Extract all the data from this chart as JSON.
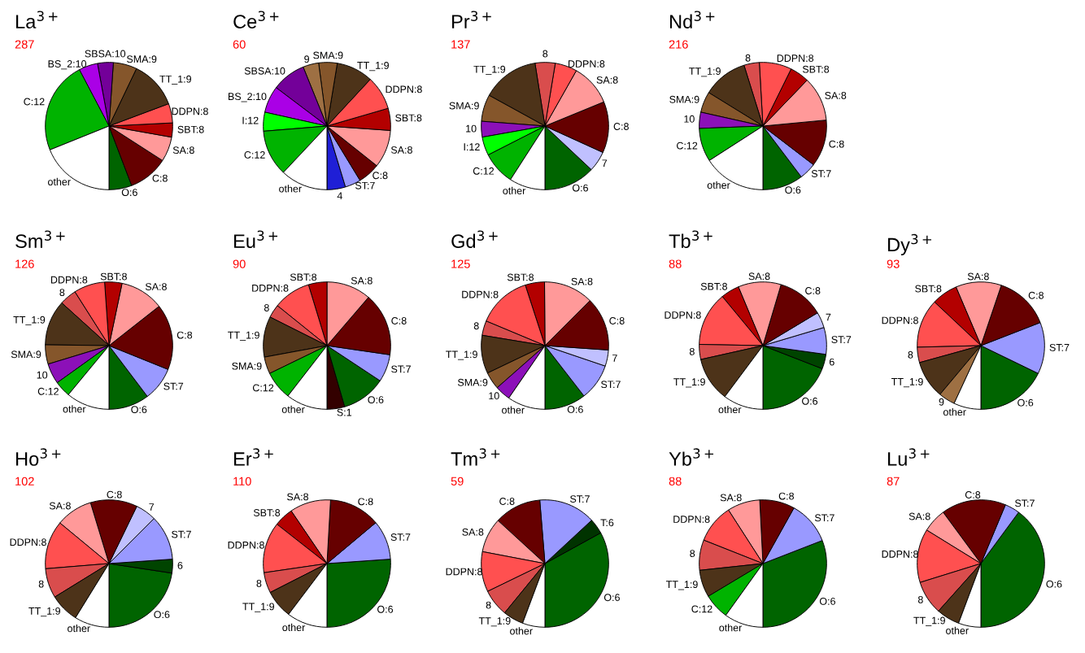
{
  "chart_data": [
    {
      "type": "pie",
      "title": "La$^{3+}$",
      "subtitle": "287",
      "categories": [
        "O:6",
        "C:8",
        "SA:8",
        "SBT:8",
        "DDPN:8",
        "TT_1:9",
        "SMA:9",
        "SBSA:10",
        "BS_2:10",
        "C:12",
        "other"
      ],
      "values": [
        5.8,
        10.1,
        6.3,
        3.6,
        4.9,
        12.2,
        6.0,
        4.0,
        4.8,
        23.4,
        18.9
      ],
      "colors": [
        "#006400",
        "#660000",
        "#ff9999",
        "#b30000",
        "#ff5050",
        "#4d3319",
        "#85562b",
        "#730099",
        "#aa00e6",
        "#00b300",
        "#ffffff"
      ]
    },
    {
      "type": "pie",
      "title": "Ce$^{3+}$",
      "subtitle": "60",
      "categories": [
        "4",
        "ST:7",
        "C:8",
        "SA:8",
        "SBT:8",
        "DDPN:8",
        "TT_1:9",
        "SMA:9",
        "9",
        "SBSA:10",
        "BS_2:10",
        "I:12",
        "C:12",
        "other"
      ],
      "values": [
        4.7,
        4.0,
        5.6,
        9.6,
        5.6,
        8.6,
        9.3,
        4.7,
        4.0,
        8.6,
        6.8,
        4.8,
        11.7,
        12.0
      ],
      "colors": [
        "#1f1fd6",
        "#9999ff",
        "#660000",
        "#ff9999",
        "#b30000",
        "#ff5050",
        "#4d3319",
        "#85562b",
        "#9e7043",
        "#730099",
        "#aa00e6",
        "#00ff00",
        "#00b300",
        "#ffffff"
      ]
    },
    {
      "type": "pie",
      "title": "Pr$^{3+}$",
      "subtitle": "137",
      "categories": [
        "O:6",
        "7",
        "C:8",
        "SA:8",
        "DDPN:8",
        "8",
        "TT_1:9",
        "SMA:9",
        "10",
        "I:12",
        "C:12",
        "other"
      ],
      "values": [
        13.0,
        5.2,
        13.0,
        10.6,
        5.6,
        5.1,
        14.5,
        6.8,
        4.0,
        4.7,
        8.4,
        9.1
      ],
      "colors": [
        "#006400",
        "#c0c0ff",
        "#660000",
        "#ff9999",
        "#ff5050",
        "#d94d4d",
        "#4d3319",
        "#85562b",
        "#8c10b8",
        "#00ff00",
        "#00b300",
        "#ffffff"
      ]
    },
    {
      "type": "pie",
      "title": "Nd$^{3+}$",
      "subtitle": "216",
      "categories": [
        "O:6",
        "ST:7",
        "C:8",
        "SA:8",
        "SBT:8",
        "DDPN:8",
        "8",
        "TT_1:9",
        "SMA:9",
        "10",
        "C:12",
        "other"
      ],
      "values": [
        10.3,
        4.3,
        11.9,
        11.3,
        4.9,
        8.2,
        3.9,
        11.4,
        5.3,
        4.1,
        8.5,
        15.9
      ],
      "colors": [
        "#006400",
        "#9999ff",
        "#660000",
        "#ff9999",
        "#b30000",
        "#ff5050",
        "#d94d4d",
        "#4d3319",
        "#85562b",
        "#8c10b8",
        "#00b300",
        "#ffffff"
      ]
    },
    {
      "type": "pie",
      "title": "Sm$^{3+}$",
      "subtitle": "126",
      "categories": [
        "O:6",
        "ST:7",
        "C:8",
        "SA:8",
        "SBT:8",
        "DDPN:8",
        "8",
        "TT_1:9",
        "SMA:9",
        "10",
        "C:12",
        "other"
      ],
      "values": [
        10.3,
        8.6,
        16.7,
        11.1,
        4.4,
        7.9,
        4.3,
        11.5,
        4.9,
        5.2,
        4.1,
        11.0
      ],
      "colors": [
        "#006400",
        "#9999ff",
        "#660000",
        "#ff9999",
        "#b30000",
        "#ff5050",
        "#d94d4d",
        "#4d3319",
        "#85562b",
        "#8c10b8",
        "#00b300",
        "#ffffff"
      ]
    },
    {
      "type": "pie",
      "title": "Eu$^{3+}$",
      "subtitle": "90",
      "categories": [
        "S:1",
        "O:6",
        "ST:7",
        "C:8",
        "SA:8",
        "SBT:8",
        "DDPN:8",
        "8",
        "TT_1:9",
        "SMA:9",
        "C:12",
        "other"
      ],
      "values": [
        4.5,
        11.2,
        7.0,
        16.0,
        11.3,
        4.7,
        9.5,
        3.4,
        10.3,
        4.3,
        7.3,
        10.5
      ],
      "colors": [
        "#330000",
        "#006400",
        "#9999ff",
        "#660000",
        "#ff9999",
        "#b30000",
        "#ff5050",
        "#d94d4d",
        "#4d3319",
        "#85562b",
        "#00b300",
        "#ffffff"
      ]
    },
    {
      "type": "pie",
      "title": "Gd$^{3+}$",
      "subtitle": "125",
      "categories": [
        "O:6",
        "ST:7",
        "7",
        "C:8",
        "SA:8",
        "SBT:8",
        "DDPN:8",
        "8",
        "TT_1:9",
        "SMA:9",
        "10",
        "other"
      ],
      "values": [
        10.5,
        9.3,
        4.1,
        13.6,
        12.6,
        4.9,
        13.7,
        3.7,
        9.7,
        4.4,
        3.9,
        9.6
      ],
      "colors": [
        "#006400",
        "#9999ff",
        "#c0c0ff",
        "#660000",
        "#ff9999",
        "#b30000",
        "#ff5050",
        "#d94d4d",
        "#4d3319",
        "#85562b",
        "#8c10b8",
        "#ffffff"
      ]
    },
    {
      "type": "pie",
      "title": "Tb$^{3+}$",
      "subtitle": "88",
      "categories": [
        "O:6",
        "6",
        "ST:7",
        "7",
        "C:8",
        "SA:8",
        "SBT:8",
        "DDPN:8",
        "8",
        "TT_1:9",
        "other"
      ],
      "values": [
        19.1,
        3.7,
        6.8,
        4.0,
        11.8,
        10.9,
        4.7,
        13.7,
        3.8,
        11.3,
        10.2
      ],
      "colors": [
        "#006400",
        "#004400",
        "#9999ff",
        "#c0c0ff",
        "#660000",
        "#ff9999",
        "#b30000",
        "#ff5050",
        "#d94d4d",
        "#4d3319",
        "#ffffff"
      ]
    },
    {
      "type": "pie",
      "title": "Dy$^{3+}$",
      "subtitle": "93",
      "categories": [
        "O:6",
        "ST:7",
        "C:8",
        "SA:8",
        "SBT:8",
        "DDPN:8",
        "8",
        "TT_1:9",
        "9",
        "other"
      ],
      "values": [
        17.8,
        13.1,
        13.9,
        11.6,
        6.6,
        12.4,
        3.9,
        9.6,
        4.2,
        6.9
      ],
      "colors": [
        "#006400",
        "#9999ff",
        "#660000",
        "#ff9999",
        "#b30000",
        "#ff5050",
        "#d94d4d",
        "#4d3319",
        "#9e7043",
        "#ffffff"
      ]
    },
    {
      "type": "pie",
      "title": "Ho$^{3+}$",
      "subtitle": "102",
      "categories": [
        "O:6",
        "6",
        "ST:7",
        "7",
        "C:8",
        "SA:8",
        "DDPN:8",
        "8",
        "TT_1:9",
        "other"
      ],
      "values": [
        22.6,
        3.5,
        11.4,
        5.3,
        11.9,
        9.3,
        12.3,
        7.5,
        7.4,
        8.8
      ],
      "colors": [
        "#006400",
        "#004400",
        "#9999ff",
        "#c0c0ff",
        "#660000",
        "#ff9999",
        "#ff5050",
        "#d94d4d",
        "#4d3319",
        "#ffffff"
      ]
    },
    {
      "type": "pie",
      "title": "Er$^{3+}$",
      "subtitle": "110",
      "categories": [
        "O:6",
        "ST:7",
        "C:8",
        "SA:8",
        "SBT:8",
        "DDPN:8",
        "8",
        "TT_1:9",
        "other"
      ],
      "values": [
        26.1,
        10.0,
        13.0,
        10.4,
        4.9,
        12.9,
        5.2,
        7.2,
        10.3
      ],
      "colors": [
        "#006400",
        "#9999ff",
        "#660000",
        "#ff9999",
        "#b30000",
        "#ff5050",
        "#d94d4d",
        "#4d3319",
        "#ffffff"
      ]
    },
    {
      "type": "pie",
      "title": "Tm$^{3+}$",
      "subtitle": "59",
      "categories": [
        "O:6",
        "T:6",
        "ST:7",
        "C:8",
        "SA:8",
        "DDPN:8",
        "8",
        "TT_1:9",
        "other"
      ],
      "values": [
        33.0,
        3.9,
        14.4,
        11.9,
        8.8,
        10.2,
        6.9,
        5.2,
        5.7
      ],
      "colors": [
        "#006400",
        "#003300",
        "#9999ff",
        "#660000",
        "#ff9999",
        "#ff5050",
        "#d94d4d",
        "#4d3319",
        "#ffffff"
      ]
    },
    {
      "type": "pie",
      "title": "Yb$^{3+}$",
      "subtitle": "88",
      "categories": [
        "O:6",
        "ST:7",
        "C:8",
        "SA:8",
        "DDPN:8",
        "8",
        "TT_1:9",
        "C:12",
        "other"
      ],
      "values": [
        30.9,
        11.0,
        8.9,
        8.3,
        9.9,
        7.7,
        6.9,
        6.5,
        9.9
      ],
      "colors": [
        "#006400",
        "#9999ff",
        "#660000",
        "#ff9999",
        "#ff5050",
        "#d94d4d",
        "#4d3319",
        "#00b300",
        "#ffffff"
      ]
    },
    {
      "type": "pie",
      "title": "Lu$^{3+}$",
      "subtitle": "87",
      "categories": [
        "O:6",
        "ST:7",
        "C:8",
        "SA:8",
        "DDPN:8",
        "8",
        "TT_1:9",
        "other"
      ],
      "values": [
        39.9,
        3.8,
        16.4,
        6.1,
        13.6,
        8.6,
        5.9,
        5.7
      ],
      "colors": [
        "#006400",
        "#9999ff",
        "#660000",
        "#ff9999",
        "#ff5050",
        "#d94d4d",
        "#4d3319",
        "#ffffff"
      ]
    }
  ]
}
